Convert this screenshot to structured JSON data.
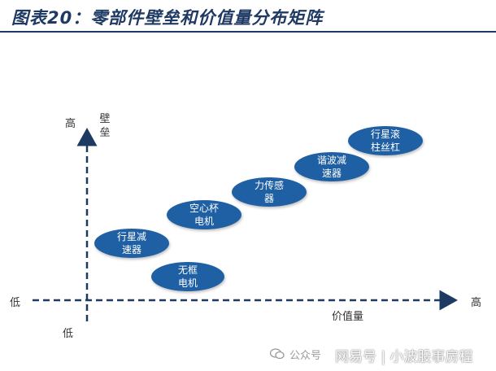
{
  "title": "图表20：零部件壁垒和价值量分布矩阵",
  "axes": {
    "y_label": "壁垒",
    "y_high": "高",
    "y_low": "低",
    "x_label": "价值量",
    "x_low": "低",
    "x_high": "高"
  },
  "bubbles": [
    {
      "label": "无框电机"
    },
    {
      "label": "行星减速器"
    },
    {
      "label": "空心杯电机"
    },
    {
      "label": "力传感器"
    },
    {
      "label": "谐波减速器"
    },
    {
      "label": "行星滚柱丝杠"
    }
  ],
  "colors": {
    "title": "#1e3a63",
    "bubble": "#1f5fa3",
    "axis": "#1e3a63"
  },
  "watermark": {
    "prefix": "公众号",
    "overlay": "网易号 | 小波股事房程",
    "icon": "wechat-icon"
  }
}
